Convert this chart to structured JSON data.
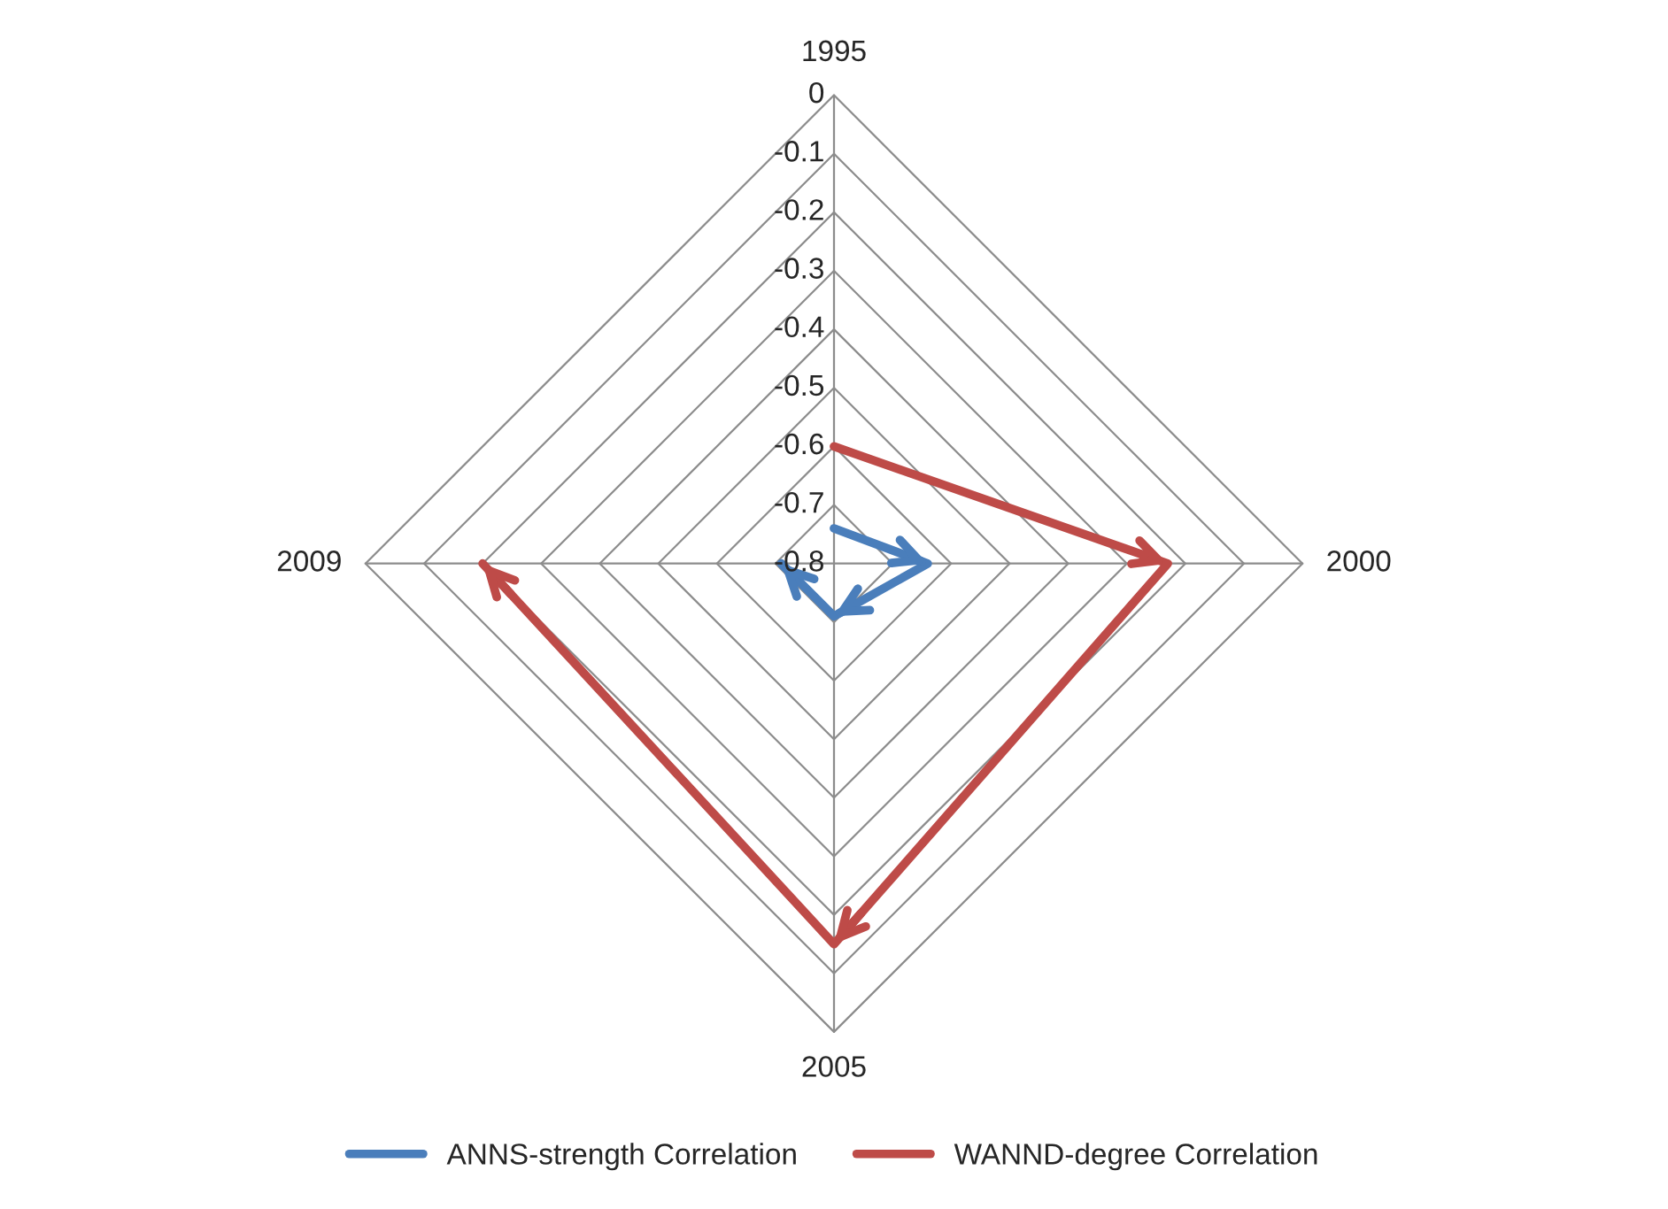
{
  "chart_data": {
    "type": "radar",
    "categories": [
      "1995",
      "2000",
      "2005",
      "2009"
    ],
    "series": [
      {
        "name": "ANNS-strength Correlation",
        "color": "#4a7ebb",
        "values": [
          -0.74,
          -0.64,
          -0.71,
          -0.71
        ]
      },
      {
        "name": "WANND-degree Correlation",
        "color": "#be4b48",
        "values": [
          -0.6,
          -0.23,
          -0.15,
          -0.2
        ]
      }
    ],
    "ylim": [
      -0.8,
      0
    ],
    "yticks": [
      {
        "value": 0,
        "label": "0"
      },
      {
        "value": -0.1,
        "label": "-0.1"
      },
      {
        "value": -0.2,
        "label": "-0.2"
      },
      {
        "value": -0.3,
        "label": "-0.3"
      },
      {
        "value": -0.4,
        "label": "-0.4"
      },
      {
        "value": -0.5,
        "label": "-0.5"
      },
      {
        "value": -0.6,
        "label": "-0.6"
      },
      {
        "value": -0.7,
        "label": "-0.7"
      },
      {
        "value": -0.8,
        "label": "-0.8"
      }
    ],
    "grid": true,
    "legend": "bottom",
    "marker": "none"
  }
}
